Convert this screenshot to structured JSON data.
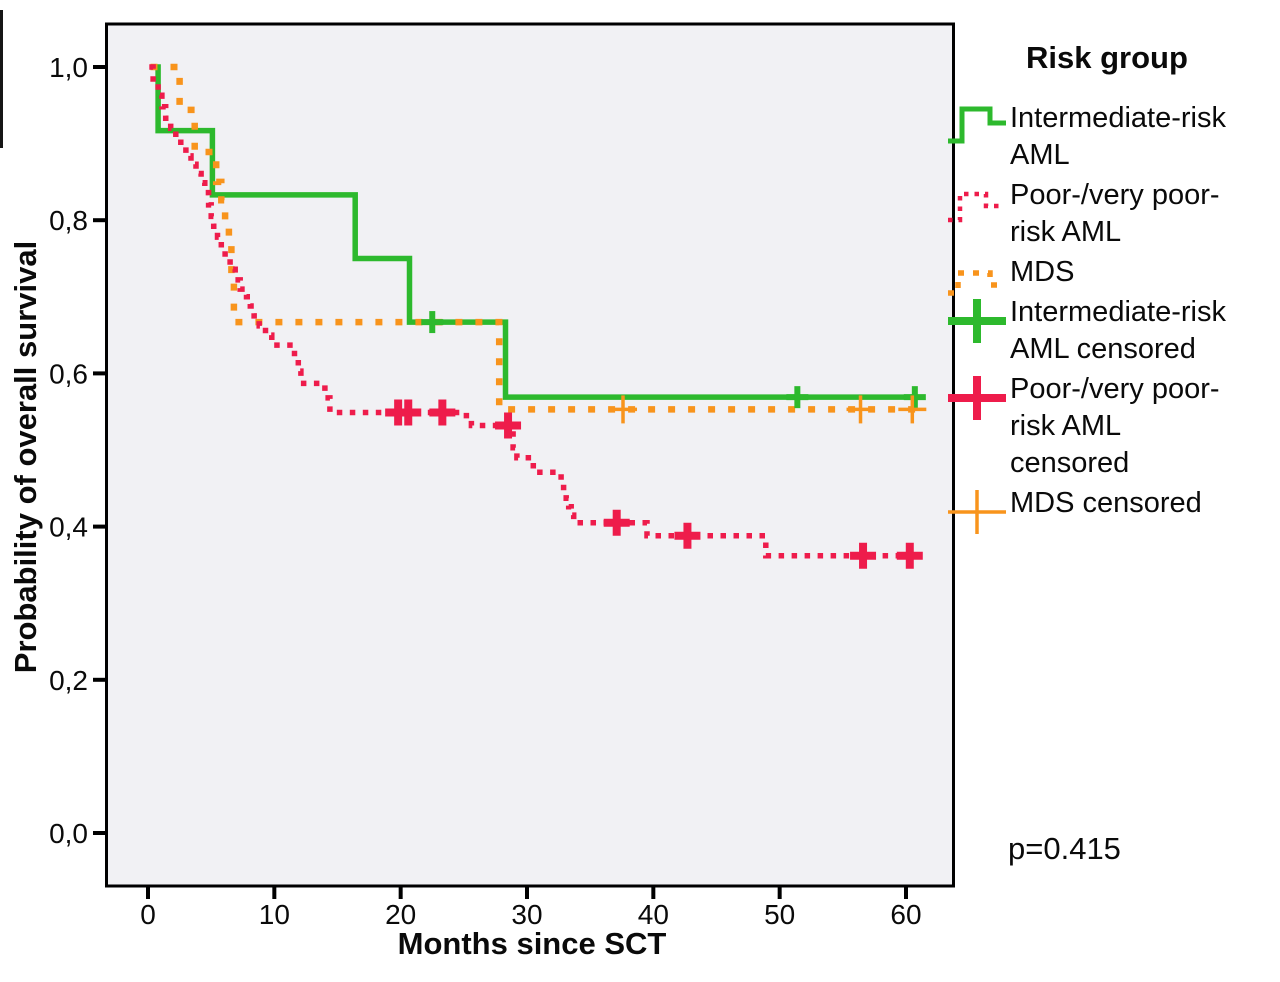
{
  "annotation": {
    "p_value": "p=0.415"
  },
  "legend": {
    "title": "Risk group",
    "entries": [
      {
        "id": "intermediate-risk-aml",
        "symbol": "step-line",
        "color": "#2db92d",
        "lines": [
          "Intermediate-risk",
          "AML"
        ]
      },
      {
        "id": "poor-very-poor-risk-aml",
        "symbol": "step-line-dotted",
        "color": "#ee1c4b",
        "lines": [
          "Poor-/very poor-",
          "risk AML"
        ]
      },
      {
        "id": "mds",
        "symbol": "step-line-dashed",
        "color": "#f8941c",
        "lines": [
          "MDS"
        ]
      },
      {
        "id": "intermediate-risk-aml-censored",
        "symbol": "plus-thick",
        "color": "#2db92d",
        "lines": [
          "Intermediate-risk",
          "AML censored"
        ]
      },
      {
        "id": "poor-very-poor-risk-aml-censored",
        "symbol": "plus-thick",
        "color": "#ee1c4b",
        "lines": [
          "Poor-/very poor-",
          "risk AML",
          "censored"
        ]
      },
      {
        "id": "mds-censored",
        "symbol": "plus-thin",
        "color": "#f8941c",
        "lines": [
          "MDS censored"
        ]
      }
    ]
  },
  "chart_data": {
    "type": "line",
    "subtype": "kaplan-meier-step",
    "title": "",
    "xlabel": "Months since SCT",
    "ylabel": "Probability of overall survival",
    "grid": false,
    "legend_position": "right",
    "plot_background": "#f1f1f4",
    "frame_color": "#000000",
    "x_axis": {
      "min": 0,
      "max": 60,
      "ticks": [
        0,
        10,
        20,
        30,
        40,
        50,
        60
      ],
      "tick_labels": [
        "0",
        "10",
        "20",
        "30",
        "40",
        "50",
        "60"
      ]
    },
    "y_axis": {
      "min": 0.0,
      "max": 1.0,
      "ticks": [
        0.0,
        0.2,
        0.4,
        0.6,
        0.8,
        1.0
      ],
      "tick_labels": [
        "0,0",
        "0,2",
        "0,4",
        "0,6",
        "0,8",
        "1,0"
      ],
      "decimal_separator": "comma"
    },
    "series": [
      {
        "name": "Intermediate-risk AML",
        "color": "#2db92d",
        "line": "solid",
        "points": [
          [
            0.2,
            1.0
          ],
          [
            0.8,
            0.917
          ],
          [
            5.1,
            0.833
          ],
          [
            16.4,
            0.75
          ],
          [
            20.7,
            0.667
          ],
          [
            28.3,
            0.569
          ]
        ],
        "end_month": 61.0,
        "censored": [
          [
            22.5,
            0.667
          ],
          [
            51.4,
            0.569
          ],
          [
            60.7,
            0.569
          ]
        ]
      },
      {
        "name": "Poor-/very poor-risk AML",
        "color": "#ee1c4b",
        "line": "dotted",
        "points": [
          [
            0.1,
            1.0
          ],
          [
            0.4,
            0.98
          ],
          [
            0.8,
            0.963
          ],
          [
            1.1,
            0.948
          ],
          [
            1.4,
            0.933
          ],
          [
            1.8,
            0.92
          ],
          [
            2.2,
            0.907
          ],
          [
            2.6,
            0.895
          ],
          [
            3.0,
            0.884
          ],
          [
            3.4,
            0.873
          ],
          [
            3.8,
            0.861
          ],
          [
            4.2,
            0.849
          ],
          [
            4.5,
            0.836
          ],
          [
            4.8,
            0.82
          ],
          [
            5.0,
            0.805
          ],
          [
            5.2,
            0.792
          ],
          [
            5.5,
            0.778
          ],
          [
            5.8,
            0.764
          ],
          [
            6.1,
            0.75
          ],
          [
            6.5,
            0.736
          ],
          [
            6.9,
            0.722
          ],
          [
            7.3,
            0.71
          ],
          [
            7.8,
            0.7
          ],
          [
            8.1,
            0.688
          ],
          [
            8.4,
            0.675
          ],
          [
            8.8,
            0.662
          ],
          [
            9.3,
            0.65
          ],
          [
            9.8,
            0.637
          ],
          [
            11.6,
            0.62
          ],
          [
            11.9,
            0.603
          ],
          [
            12.1,
            0.587
          ],
          [
            14.0,
            0.568
          ],
          [
            14.4,
            0.549
          ],
          [
            25.2,
            0.54
          ],
          [
            25.6,
            0.532
          ],
          [
            28.9,
            0.503
          ],
          [
            29.2,
            0.49
          ],
          [
            30.5,
            0.471
          ],
          [
            32.7,
            0.459
          ],
          [
            32.9,
            0.447
          ],
          [
            33.1,
            0.437
          ],
          [
            33.3,
            0.426
          ],
          [
            33.5,
            0.415
          ],
          [
            33.7,
            0.405
          ],
          [
            39.5,
            0.388
          ],
          [
            48.9,
            0.362
          ]
        ],
        "end_month": 60.6,
        "censored": [
          [
            19.8,
            0.549
          ],
          [
            20.6,
            0.549
          ],
          [
            23.3,
            0.549
          ],
          [
            28.5,
            0.532
          ],
          [
            37.1,
            0.405
          ],
          [
            42.7,
            0.388
          ],
          [
            56.6,
            0.362
          ],
          [
            60.3,
            0.362
          ]
        ]
      },
      {
        "name": "MDS",
        "color": "#f8941c",
        "line": "dashed",
        "points": [
          [
            0.2,
            1.0
          ],
          [
            2.5,
            0.944
          ],
          [
            3.7,
            0.889
          ],
          [
            5.4,
            0.85
          ],
          [
            5.8,
            0.826
          ],
          [
            6.1,
            0.8
          ],
          [
            6.4,
            0.778
          ],
          [
            6.6,
            0.72
          ],
          [
            6.8,
            0.667
          ],
          [
            27.8,
            0.553
          ]
        ],
        "end_month": 60.8,
        "censored": [
          [
            37.6,
            0.553
          ],
          [
            56.4,
            0.553
          ],
          [
            60.5,
            0.553
          ]
        ]
      }
    ],
    "annotations": [
      "p=0.415"
    ]
  }
}
